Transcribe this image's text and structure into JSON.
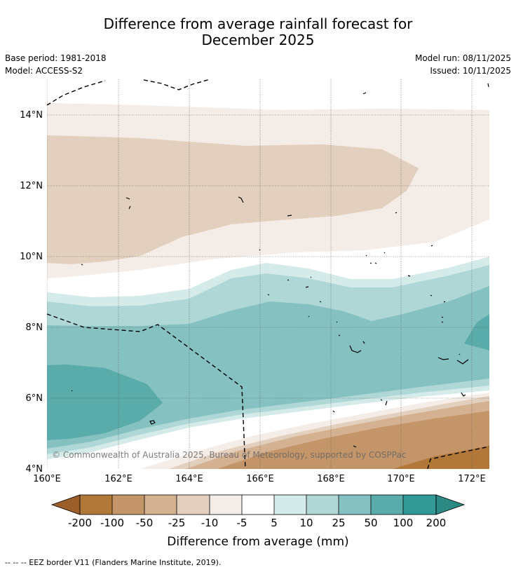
{
  "title_line1": "Difference from average rainfall forecast for",
  "title_line2": "December 2025",
  "base_period": "Base period: 1981-2018",
  "model": "Model: ACCESS-S2",
  "model_run": "Model run: 08/11/2025",
  "issued": "Issued: 10/11/2025",
  "copyright": "© Commonwealth of Australia 2025, Bureau of Meteorology, supported by COSPPac",
  "footer": "--  --  -- EEZ border V11 (Flanders Marine Institute, 2019).",
  "map": {
    "lon_labels": [
      "160°E",
      "162°E",
      "164°E",
      "166°E",
      "168°E",
      "170°E",
      "172°E"
    ],
    "lat_labels": [
      "14°N",
      "12°N",
      "10°N",
      "8°N",
      "6°N",
      "4°N"
    ]
  },
  "legend": {
    "title": "Difference from average (mm)",
    "tick_labels": [
      "-200",
      "-100",
      "-50",
      "-25",
      "-10",
      "-5",
      "5",
      "10",
      "25",
      "50",
      "100",
      "200"
    ],
    "colors": {
      "lt_-200": "#9d5f29",
      "-200_-100": "#b17839",
      "-100_-50": "#c49568",
      "-50_-25": "#d4b191",
      "-25_-10": "#e3cfbd",
      "-10_-5": "#f4ece6",
      "-5_5": "#ffffff",
      "5_10": "#d5ebe9",
      "10_25": "#aed7d6",
      "25_50": "#86c1c1",
      "50_100": "#5aacab",
      "100_200": "#339996",
      "gt_200": "#2b8a84"
    }
  }
}
